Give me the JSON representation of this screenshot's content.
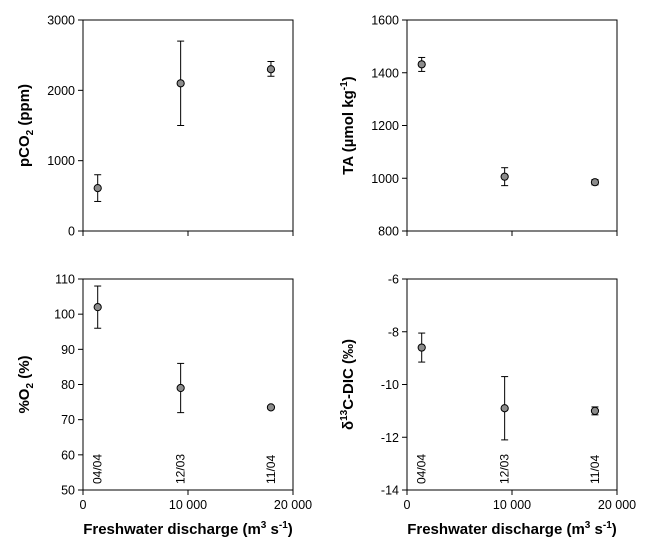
{
  "chart_data": [
    {
      "type": "scatter",
      "id": "pco2",
      "ylabel": "pCO2 (ppm)",
      "xlabel": "",
      "xlim": [
        0,
        20000
      ],
      "ylim": [
        0,
        3000
      ],
      "xticks": [
        0,
        10000,
        20000
      ],
      "xtick_labels": [],
      "yticks": [
        0,
        1000,
        2000,
        3000
      ],
      "ytick_labels": [
        "0",
        "1000",
        "2000",
        "3000"
      ],
      "ylabel_parts": [
        [
          "pCO",
          ""
        ],
        [
          "2",
          "sub"
        ],
        [
          " (ppm)",
          ""
        ]
      ],
      "series": [
        {
          "x": [
            1400,
            9300,
            17900
          ],
          "y": [
            610,
            2100,
            2300
          ],
          "yerr_low": [
            420,
            1500,
            2200
          ],
          "yerr_high": [
            800,
            2700,
            2410
          ]
        }
      ]
    },
    {
      "type": "scatter",
      "id": "ta",
      "ylabel": "TA (µmol kg-1)",
      "xlabel": "",
      "xlim": [
        0,
        20000
      ],
      "ylim": [
        800,
        1600
      ],
      "xticks": [
        0,
        10000,
        20000
      ],
      "xtick_labels": [],
      "yticks": [
        800,
        1000,
        1200,
        1400,
        1600
      ],
      "ytick_labels": [
        "800",
        "1000",
        "1200",
        "1400",
        "1600"
      ],
      "ylabel_parts": [
        [
          "TA (µmol kg",
          ""
        ],
        [
          "-1",
          "sup"
        ],
        [
          ")",
          ""
        ]
      ],
      "series": [
        {
          "x": [
            1400,
            9300,
            17900
          ],
          "y": [
            1432,
            1006,
            985
          ],
          "yerr_low": [
            1405,
            972,
            975
          ],
          "yerr_high": [
            1458,
            1040,
            995
          ]
        }
      ]
    },
    {
      "type": "scatter",
      "id": "o2",
      "ylabel": "%O2 (%)",
      "xlabel": "Freshwater discharge (m3 s-1)",
      "xlim": [
        0,
        20000
      ],
      "ylim": [
        50,
        110
      ],
      "xticks": [
        0,
        10000,
        20000
      ],
      "xtick_labels": [
        "0",
        "10 000",
        "20 000"
      ],
      "yticks": [
        50,
        60,
        70,
        80,
        90,
        100,
        110
      ],
      "ytick_labels": [
        "50",
        "60",
        "70",
        "80",
        "90",
        "100",
        "110"
      ],
      "ylabel_parts": [
        [
          "%O",
          ""
        ],
        [
          "2",
          "sub"
        ],
        [
          " (%)",
          ""
        ]
      ],
      "xlabel_parts": [
        [
          "Freshwater discharge (m",
          ""
        ],
        [
          "3",
          "sup"
        ],
        [
          " s",
          ""
        ],
        [
          "-1",
          "sup"
        ],
        [
          ")",
          ""
        ]
      ],
      "dates": [
        "04/04",
        "12/03",
        "11/04"
      ],
      "series": [
        {
          "x": [
            1400,
            9300,
            17900
          ],
          "y": [
            102,
            79,
            73.5
          ],
          "yerr_low": [
            96,
            72,
            73
          ],
          "yerr_high": [
            108,
            86,
            74
          ]
        }
      ]
    },
    {
      "type": "scatter",
      "id": "d13c",
      "ylabel": "δ13C-DIC (‰)",
      "xlabel": "Freshwater discharge (m3 s-1)",
      "xlim": [
        0,
        20000
      ],
      "ylim": [
        -14,
        -6
      ],
      "xticks": [
        0,
        10000,
        20000
      ],
      "xtick_labels": [
        "0",
        "10 000",
        "20 000"
      ],
      "yticks": [
        -14,
        -12,
        -10,
        -8,
        -6
      ],
      "ytick_labels": [
        "-14",
        "-12",
        "-10",
        "-8",
        "-6"
      ],
      "ylabel_parts": [
        [
          "δ",
          ""
        ],
        [
          "13",
          "sup"
        ],
        [
          "C-DIC (‰)",
          ""
        ]
      ],
      "xlabel_parts": [
        [
          "Freshwater discharge (m",
          ""
        ],
        [
          "3",
          "sup"
        ],
        [
          " s",
          ""
        ],
        [
          "-1",
          "sup"
        ],
        [
          ")",
          ""
        ]
      ],
      "dates": [
        "04/04",
        "12/03",
        "11/04"
      ],
      "series": [
        {
          "x": [
            1400,
            9300,
            17900
          ],
          "y": [
            -8.6,
            -10.9,
            -11.0
          ],
          "yerr_low": [
            -9.15,
            -12.1,
            -11.15
          ],
          "yerr_high": [
            -8.05,
            -9.7,
            -10.85
          ]
        }
      ]
    }
  ]
}
